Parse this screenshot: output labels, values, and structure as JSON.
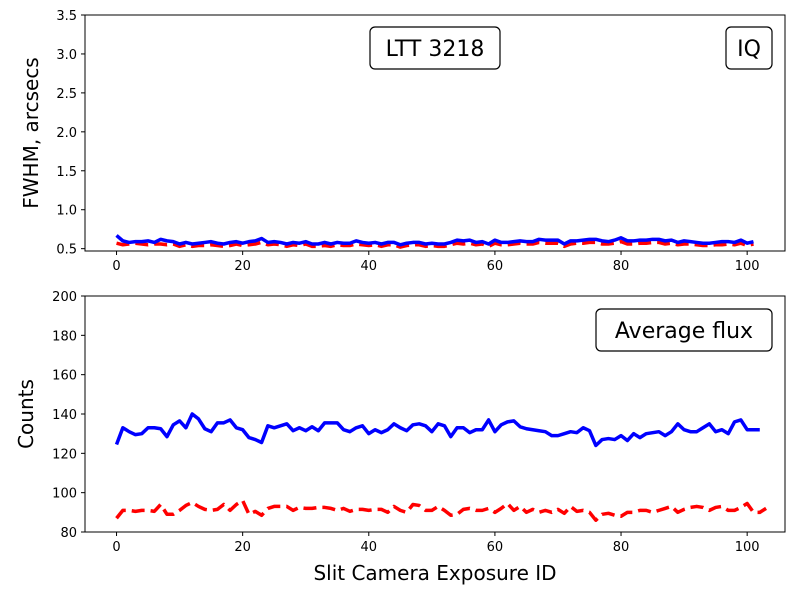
{
  "chart_data": [
    {
      "type": "line",
      "title": "",
      "annotations": [
        "LTT 3218",
        "IQ"
      ],
      "xlabel": "",
      "ylabel": "FWHM, arcsecs",
      "xlim": [
        -5,
        106
      ],
      "ylim": [
        0.47,
        3.5
      ],
      "xticks": [
        0,
        20,
        40,
        60,
        80,
        100
      ],
      "yticks": [
        0.5,
        1.0,
        1.5,
        2.0,
        2.5,
        3.0,
        3.5
      ],
      "ytick_labels": [
        "0.5",
        "1.0",
        "1.5",
        "2.0",
        "2.5",
        "3.0",
        "3.5"
      ],
      "x_start": 0,
      "series": [
        {
          "name": "blue",
          "color": "#0000ff",
          "style": "solid",
          "values": [
            0.67,
            0.6,
            0.58,
            0.59,
            0.59,
            0.6,
            0.58,
            0.62,
            0.6,
            0.59,
            0.56,
            0.58,
            0.56,
            0.57,
            0.58,
            0.59,
            0.57,
            0.56,
            0.58,
            0.59,
            0.57,
            0.59,
            0.6,
            0.63,
            0.58,
            0.59,
            0.58,
            0.56,
            0.58,
            0.57,
            0.59,
            0.56,
            0.56,
            0.58,
            0.56,
            0.58,
            0.57,
            0.57,
            0.6,
            0.58,
            0.57,
            0.58,
            0.56,
            0.58,
            0.58,
            0.55,
            0.57,
            0.58,
            0.58,
            0.56,
            0.57,
            0.56,
            0.56,
            0.58,
            0.61,
            0.6,
            0.61,
            0.58,
            0.59,
            0.56,
            0.61,
            0.58,
            0.58,
            0.59,
            0.6,
            0.59,
            0.59,
            0.62,
            0.61,
            0.61,
            0.61,
            0.56,
            0.6,
            0.6,
            0.61,
            0.62,
            0.62,
            0.6,
            0.59,
            0.61,
            0.64,
            0.6,
            0.6,
            0.61,
            0.61,
            0.62,
            0.62,
            0.6,
            0.61,
            0.58,
            0.6,
            0.59,
            0.58,
            0.57,
            0.57,
            0.58,
            0.59,
            0.59,
            0.58,
            0.61,
            0.57,
            0.59
          ]
        },
        {
          "name": "red",
          "color": "#ff0000",
          "style": "dashed",
          "values": [
            0.57,
            0.55,
            0.56,
            0.57,
            0.56,
            0.55,
            0.56,
            0.56,
            0.55,
            0.56,
            0.53,
            0.55,
            0.53,
            0.54,
            0.54,
            0.55,
            0.54,
            0.53,
            0.54,
            0.56,
            0.54,
            0.55,
            0.56,
            0.58,
            0.55,
            0.56,
            0.55,
            0.53,
            0.55,
            0.54,
            0.56,
            0.53,
            0.53,
            0.54,
            0.53,
            0.55,
            0.54,
            0.54,
            0.56,
            0.55,
            0.54,
            0.55,
            0.53,
            0.55,
            0.55,
            0.52,
            0.54,
            0.55,
            0.55,
            0.53,
            0.54,
            0.53,
            0.53,
            0.55,
            0.57,
            0.56,
            0.57,
            0.55,
            0.56,
            0.53,
            0.57,
            0.55,
            0.55,
            0.56,
            0.57,
            0.56,
            0.56,
            0.58,
            0.57,
            0.57,
            0.57,
            0.53,
            0.56,
            0.57,
            0.57,
            0.58,
            0.58,
            0.56,
            0.56,
            0.57,
            0.59,
            0.56,
            0.56,
            0.57,
            0.57,
            0.58,
            0.58,
            0.56,
            0.57,
            0.55,
            0.56,
            0.56,
            0.55,
            0.54,
            0.54,
            0.55,
            0.55,
            0.56,
            0.55,
            0.57,
            0.54,
            0.56
          ]
        }
      ]
    },
    {
      "type": "line",
      "title": "",
      "annotations": [
        "Average flux"
      ],
      "xlabel": "Slit Camera Exposure ID",
      "ylabel": "Counts",
      "xlim": [
        -5,
        106
      ],
      "ylim": [
        80,
        200
      ],
      "xticks": [
        0,
        20,
        40,
        60,
        80,
        100
      ],
      "yticks": [
        80,
        100,
        120,
        140,
        160,
        180,
        200
      ],
      "ytick_labels": [
        "80",
        "100",
        "120",
        "140",
        "160",
        "180",
        "200"
      ],
      "x_start": 0,
      "series": [
        {
          "name": "blue",
          "color": "#0000ff",
          "style": "solid",
          "values": [
            124.5,
            133,
            131,
            129.5,
            130,
            133,
            133,
            132.5,
            128.5,
            134.5,
            136.5,
            133,
            140,
            137.5,
            132.5,
            131,
            135.5,
            135.5,
            137,
            133,
            132,
            128,
            127,
            125.5,
            134,
            133,
            134,
            135,
            131.5,
            133,
            131.5,
            133.5,
            131.5,
            135.5,
            135.5,
            135.5,
            132,
            131,
            133,
            134,
            130,
            132,
            130.5,
            132,
            135,
            133,
            131.5,
            134.5,
            135,
            134,
            131,
            135,
            134,
            128.5,
            133,
            133,
            130.5,
            132,
            132,
            137,
            131,
            134.5,
            136,
            136.5,
            133.5,
            132.5,
            132,
            131.5,
            131,
            129,
            129,
            130,
            131,
            130.5,
            133,
            131.5,
            124,
            127,
            127.5,
            127,
            129,
            126.5,
            130,
            128,
            130,
            130.5,
            131,
            129,
            131,
            135,
            132,
            131,
            131,
            133,
            135,
            131,
            132,
            130,
            136,
            137,
            132,
            132,
            132
          ]
        },
        {
          "name": "red",
          "color": "#ff0000",
          "style": "dashed",
          "values": [
            87,
            91,
            91,
            90.5,
            91,
            91,
            90.5,
            94,
            89,
            89,
            91,
            93.5,
            95,
            93,
            91.5,
            91,
            91.5,
            94,
            91,
            94,
            96,
            89,
            90.5,
            88.5,
            92,
            93,
            93,
            93,
            91,
            92.5,
            92,
            92,
            92.5,
            92.5,
            92,
            91,
            92,
            90.5,
            91.5,
            91.5,
            91,
            91.5,
            91.5,
            90,
            93,
            91,
            90,
            94,
            93.5,
            91,
            91,
            93,
            91,
            88.5,
            89,
            91.5,
            92,
            91,
            91,
            92,
            90,
            92,
            94.5,
            91,
            93,
            90,
            91.5,
            90,
            91,
            90,
            91.5,
            89.5,
            93,
            90.5,
            91,
            90,
            86,
            89,
            89.5,
            88.5,
            88,
            90,
            90,
            91,
            91,
            90,
            91,
            92,
            93,
            90,
            91.5,
            92.5,
            93,
            92.5,
            91,
            92.5,
            93,
            91,
            91,
            92.5,
            94.5,
            90,
            90,
            92
          ]
        }
      ]
    }
  ]
}
